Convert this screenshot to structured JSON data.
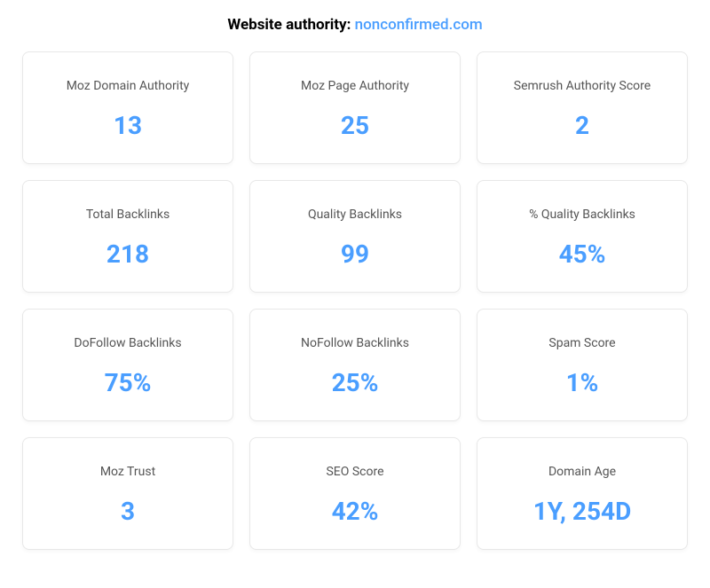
{
  "header": {
    "title": "Website authority: ",
    "domain": "nonconfirmed.com"
  },
  "metrics": [
    {
      "label": "Moz Domain Authority",
      "value": "13"
    },
    {
      "label": "Moz Page Authority",
      "value": "25"
    },
    {
      "label": "Semrush Authority Score",
      "value": "2"
    },
    {
      "label": "Total Backlinks",
      "value": "218"
    },
    {
      "label": "Quality Backlinks",
      "value": "99"
    },
    {
      "label": "% Quality Backlinks",
      "value": "45%"
    },
    {
      "label": "DoFollow Backlinks",
      "value": "75%"
    },
    {
      "label": "NoFollow Backlinks",
      "value": "25%"
    },
    {
      "label": "Spam Score",
      "value": "1%"
    },
    {
      "label": "Moz Trust",
      "value": "3"
    },
    {
      "label": "SEO Score",
      "value": "42%"
    },
    {
      "label": "Domain Age",
      "value": "1Y, 254D"
    }
  ],
  "styling": {
    "accent_color": "#4a9eff",
    "label_color": "#555555",
    "background_color": "#ffffff",
    "card_border_color": "#e8e8e8",
    "title_fontsize": 17,
    "label_fontsize": 14,
    "value_fontsize": 28
  }
}
